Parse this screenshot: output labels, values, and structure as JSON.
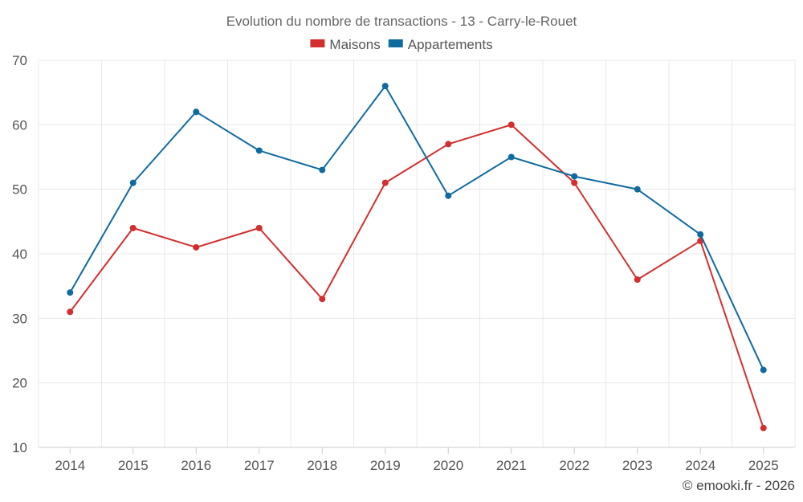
{
  "chart_data": {
    "type": "line",
    "title": "Evolution du nombre de transactions - 13 - Carry-le-Rouet",
    "categories": [
      "2014",
      "2015",
      "2016",
      "2017",
      "2018",
      "2019",
      "2020",
      "2021",
      "2022",
      "2023",
      "2024",
      "2025"
    ],
    "series": [
      {
        "name": "Maisons",
        "color": "#d32f2f",
        "values": [
          31,
          44,
          41,
          44,
          33,
          51,
          57,
          60,
          51,
          36,
          42,
          13
        ]
      },
      {
        "name": "Appartements",
        "color": "#0f6aa0",
        "values": [
          34,
          51,
          62,
          56,
          53,
          66,
          49,
          55,
          52,
          50,
          43,
          22
        ]
      }
    ],
    "ylim": [
      10,
      70
    ],
    "yticks": [
      10,
      20,
      30,
      40,
      50,
      60,
      70
    ],
    "xlabel": "",
    "ylabel": "",
    "grid": true,
    "legend_position": "top-center"
  },
  "credit": "© emooki.fr - 2026"
}
